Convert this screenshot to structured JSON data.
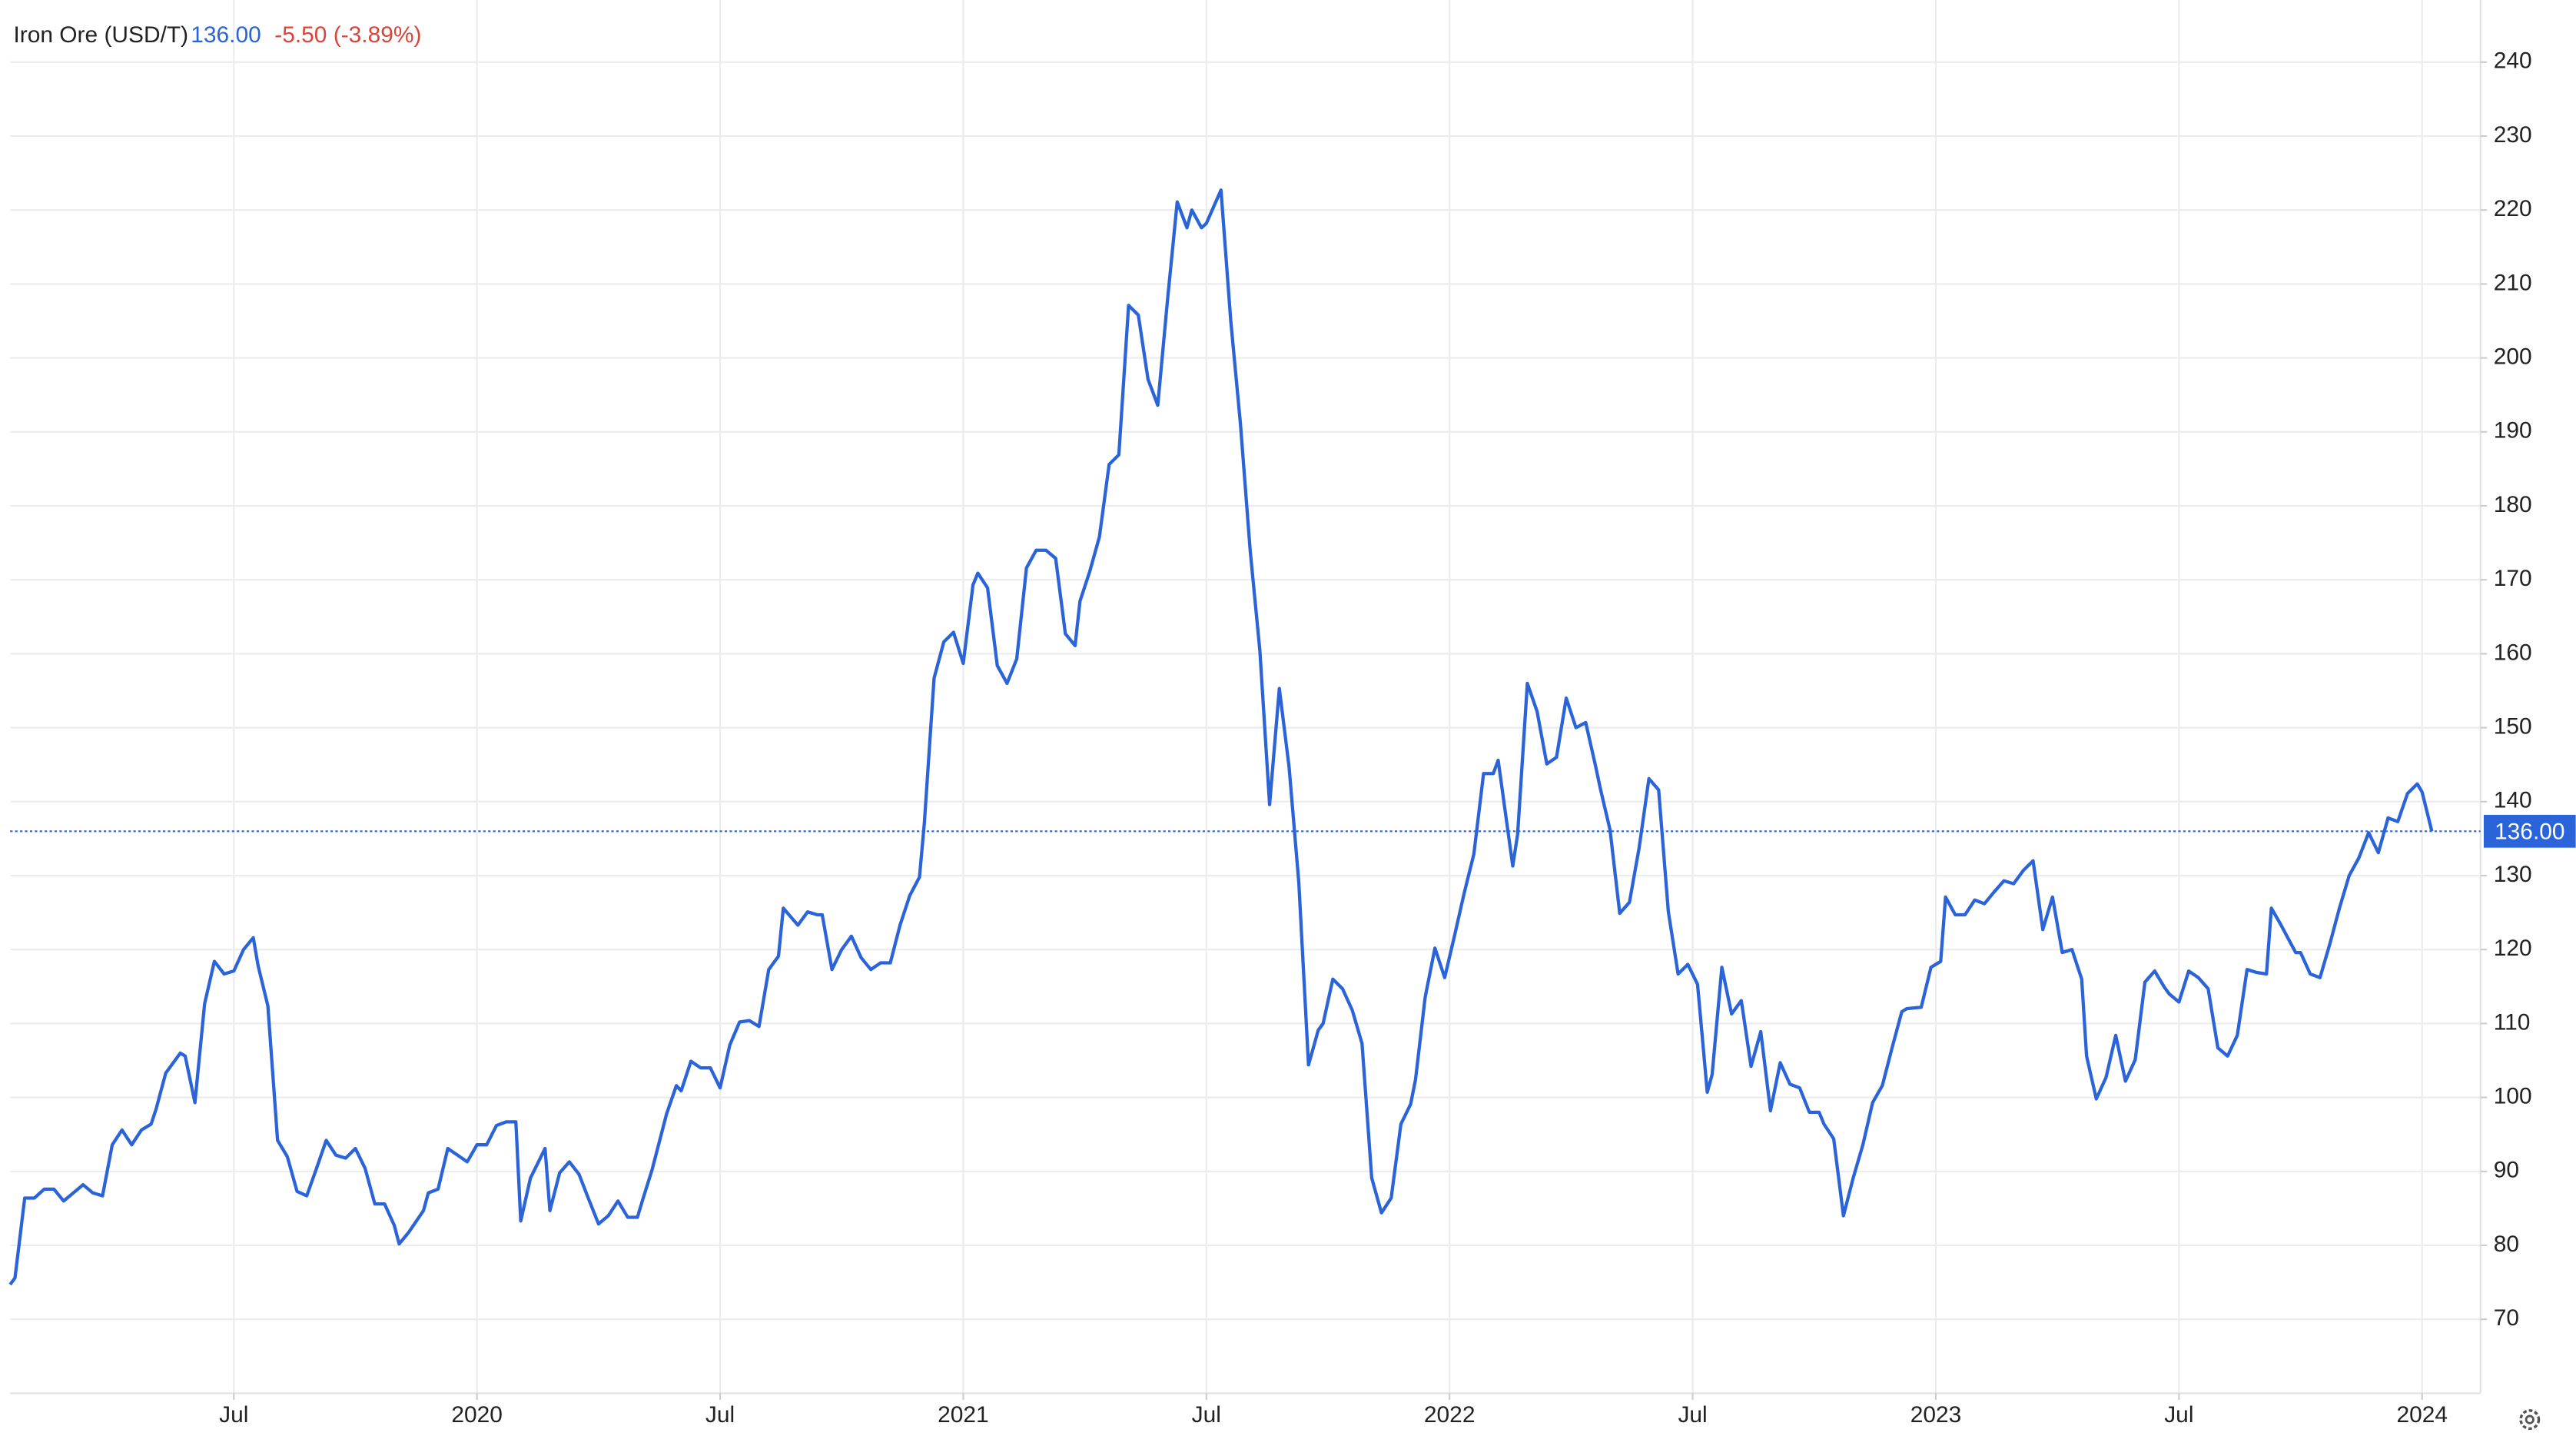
{
  "chart_data": {
    "type": "line",
    "title": "Iron Ore (USD/T)",
    "price": "136.00",
    "change": "-5.50 (-3.89%)",
    "grid": true,
    "xlim": [
      2019.04,
      2024.12
    ],
    "ylim": [
      60,
      248.4
    ],
    "xticks": [
      {
        "value": 2019.5,
        "label": "Jul"
      },
      2020,
      {
        "value": 2020.5,
        "label": "Jul"
      },
      2021,
      {
        "value": 2021.5,
        "label": "Jul"
      },
      2022,
      {
        "value": 2022.5,
        "label": "Jul"
      },
      2023,
      {
        "value": 2023.5,
        "label": "Jul"
      },
      2024
    ],
    "yticks": [
      70,
      80,
      90,
      100,
      110,
      120,
      130,
      140,
      150,
      160,
      170,
      180,
      190,
      200,
      210,
      220,
      230,
      240
    ],
    "x": [
      2019.04,
      2019.05,
      2019.07,
      2019.09,
      2019.11,
      2019.13,
      2019.15,
      2019.17,
      2019.19,
      2019.21,
      2019.23,
      2019.25,
      2019.27,
      2019.29,
      2019.31,
      2019.33,
      2019.34,
      2019.36,
      2019.39,
      2019.4,
      2019.42,
      2019.44,
      2019.46,
      2019.48,
      2019.5,
      2019.52,
      2019.54,
      2019.55,
      2019.57,
      2019.59,
      2019.61,
      2019.63,
      2019.65,
      2019.67,
      2019.69,
      2019.71,
      2019.73,
      2019.75,
      2019.77,
      2019.79,
      2019.81,
      2019.83,
      2019.84,
      2019.86,
      2019.89,
      2019.9,
      2019.92,
      2019.94,
      2019.96,
      2019.98,
      2020.0,
      2020.02,
      2020.04,
      2020.06,
      2020.08,
      2020.09,
      2020.11,
      2020.14,
      2020.15,
      2020.17,
      2020.19,
      2020.21,
      2020.23,
      2020.25,
      2020.27,
      2020.29,
      2020.31,
      2020.33,
      2020.34,
      2020.36,
      2020.39,
      2020.41,
      2020.42,
      2020.44,
      2020.46,
      2020.48,
      2020.5,
      2020.52,
      2020.54,
      2020.56,
      2020.58,
      2020.6,
      2020.62,
      2020.63,
      2020.66,
      2020.68,
      2020.7,
      2020.71,
      2020.73,
      2020.75,
      2020.77,
      2020.79,
      2020.81,
      2020.83,
      2020.85,
      2020.87,
      2020.89,
      2020.91,
      2020.92,
      2020.94,
      2020.96,
      2020.98,
      2021.0,
      2021.02,
      2021.03,
      2021.05,
      2021.07,
      2021.09,
      2021.11,
      2021.13,
      2021.15,
      2021.17,
      2021.19,
      2021.21,
      2021.23,
      2021.24,
      2021.26,
      2021.28,
      2021.3,
      2021.32,
      2021.34,
      2021.36,
      2021.38,
      2021.4,
      2021.42,
      2021.44,
      2021.46,
      2021.47,
      2021.49,
      2021.5,
      2021.53,
      2021.55,
      2021.57,
      2021.59,
      2021.61,
      2021.63,
      2021.65,
      2021.67,
      2021.69,
      2021.71,
      2021.73,
      2021.74,
      2021.76,
      2021.78,
      2021.8,
      2021.82,
      2021.84,
      2021.86,
      2021.88,
      2021.9,
      2021.92,
      2021.93,
      2021.95,
      2021.97,
      2021.99,
      2022.01,
      2022.03,
      2022.05,
      2022.07,
      2022.09,
      2022.1,
      2022.13,
      2022.14,
      2022.16,
      2022.18,
      2022.2,
      2022.22,
      2022.24,
      2022.26,
      2022.28,
      2022.3,
      2022.31,
      2022.33,
      2022.35,
      2022.37,
      2022.39,
      2022.41,
      2022.43,
      2022.45,
      2022.47,
      2022.49,
      2022.51,
      2022.53,
      2022.54,
      2022.56,
      2022.58,
      2022.6,
      2022.62,
      2022.64,
      2022.66,
      2022.68,
      2022.7,
      2022.72,
      2022.74,
      2022.76,
      2022.77,
      2022.79,
      2022.81,
      2022.83,
      2022.85,
      2022.87,
      2022.89,
      2022.91,
      2022.93,
      2022.94,
      2022.97,
      2022.99,
      2023.01,
      2023.02,
      2023.04,
      2023.06,
      2023.08,
      2023.1,
      2023.12,
      2023.14,
      2023.16,
      2023.18,
      2023.2,
      2023.22,
      2023.24,
      2023.26,
      2023.28,
      2023.3,
      2023.31,
      2023.33,
      2023.35,
      2023.37,
      2023.39,
      2023.41,
      2023.43,
      2023.45,
      2023.47,
      2023.48,
      2023.5,
      2023.52,
      2023.54,
      2023.56,
      2023.58,
      2023.6,
      2023.62,
      2023.64,
      2023.66,
      2023.68,
      2023.69,
      2023.71,
      2023.74,
      2023.75,
      2023.77,
      2023.79,
      2023.81,
      2023.83,
      2023.85,
      2023.87,
      2023.89,
      2023.91,
      2023.93,
      2023.95,
      2023.97,
      2023.99,
      2024.0,
      2024.02
    ],
    "series": [
      {
        "name": "Iron Ore (USD/T)",
        "color": "#2b63d9",
        "values": [
          74.7,
          75.6,
          86.4,
          86.4,
          87.6,
          87.6,
          86.0,
          87.1,
          88.2,
          87.1,
          86.7,
          93.6,
          95.6,
          93.6,
          95.6,
          96.4,
          98.4,
          103.3,
          106.0,
          105.6,
          99.3,
          112.7,
          118.4,
          116.7,
          117.1,
          120.0,
          121.6,
          117.8,
          112.4,
          94.2,
          92.0,
          87.3,
          86.7,
          90.4,
          94.2,
          92.2,
          91.8,
          93.1,
          90.4,
          85.6,
          85.6,
          82.7,
          80.2,
          81.8,
          84.7,
          87.1,
          87.6,
          93.1,
          92.2,
          91.3,
          93.6,
          93.6,
          96.2,
          96.7,
          96.7,
          83.3,
          89.1,
          93.1,
          84.7,
          89.8,
          91.3,
          89.6,
          86.2,
          82.9,
          84.0,
          86.0,
          83.8,
          83.8,
          86.0,
          90.2,
          97.8,
          101.6,
          100.9,
          104.9,
          104.0,
          104.0,
          101.3,
          107.1,
          110.2,
          110.4,
          109.6,
          117.3,
          119.1,
          125.6,
          123.3,
          125.1,
          124.7,
          124.7,
          117.3,
          120.0,
          121.8,
          118.9,
          117.3,
          118.2,
          118.2,
          123.3,
          127.3,
          129.8,
          137.1,
          156.7,
          161.6,
          162.9,
          158.7,
          169.3,
          170.9,
          168.9,
          158.4,
          156.0,
          159.3,
          171.6,
          174.0,
          174.0,
          172.9,
          162.7,
          161.1,
          167.1,
          171.1,
          175.8,
          185.6,
          186.9,
          207.1,
          205.8,
          197.1,
          193.6,
          207.8,
          221.1,
          217.6,
          220.0,
          217.6,
          218.2,
          222.7,
          205.1,
          191.1,
          174.0,
          160.4,
          139.6,
          155.3,
          144.7,
          129.1,
          104.4,
          109.1,
          110.0,
          116.0,
          114.7,
          111.8,
          107.3,
          89.1,
          84.4,
          86.4,
          96.4,
          99.1,
          102.4,
          113.6,
          120.2,
          116.2,
          121.8,
          127.6,
          132.9,
          143.8,
          143.8,
          145.6,
          131.3,
          135.6,
          156.0,
          152.2,
          145.1,
          146.0,
          154.0,
          150.0,
          150.7,
          144.9,
          141.8,
          136.2,
          124.9,
          126.4,
          133.8,
          143.1,
          141.6,
          125.1,
          116.7,
          118.0,
          115.3,
          100.7,
          103.1,
          117.6,
          111.3,
          113.1,
          104.2,
          108.9,
          98.2,
          104.7,
          101.8,
          101.3,
          98.0,
          98.0,
          96.4,
          94.4,
          84.0,
          89.1,
          93.6,
          99.3,
          101.6,
          106.7,
          111.6,
          112.0,
          112.2,
          117.6,
          118.4,
          127.1,
          124.7,
          124.7,
          126.7,
          126.2,
          127.8,
          129.3,
          128.9,
          130.7,
          132.0,
          122.7,
          127.1,
          119.6,
          120.0,
          116.0,
          105.6,
          99.8,
          102.7,
          108.4,
          102.2,
          105.1,
          115.6,
          117.1,
          114.9,
          114.0,
          112.9,
          117.1,
          116.2,
          114.7,
          106.7,
          105.6,
          108.4,
          117.3,
          116.9,
          116.7,
          125.6,
          123.3,
          119.6,
          119.6,
          116.7,
          116.2,
          120.7,
          125.6,
          130.0,
          132.4,
          135.8,
          133.1,
          137.8,
          137.3,
          141.1,
          142.4,
          141.3,
          136.0
        ]
      }
    ]
  }
}
